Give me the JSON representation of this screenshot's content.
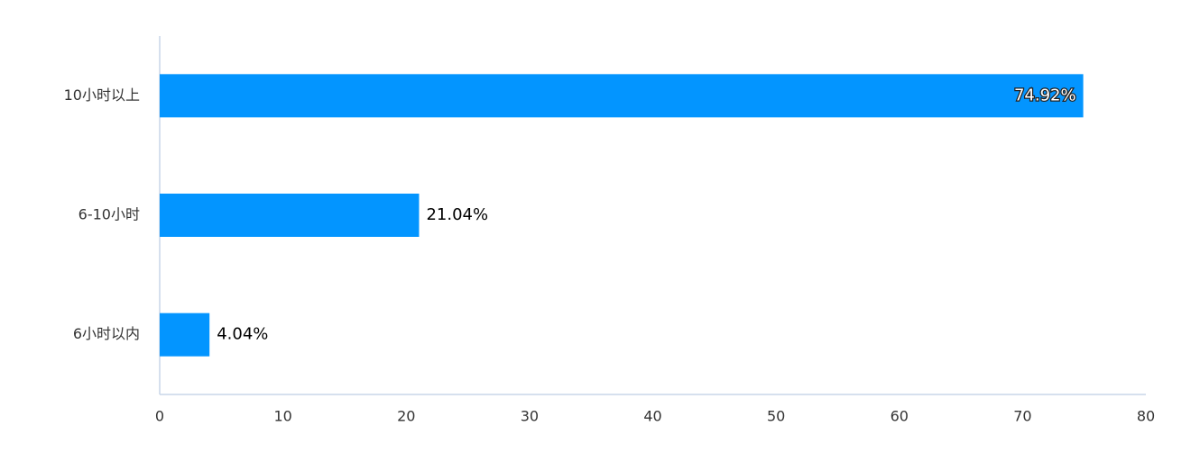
{
  "chart_data": {
    "type": "bar",
    "orientation": "horizontal",
    "categories": [
      "10小时以上",
      "6-10小时",
      "6小时以内"
    ],
    "values": [
      74.92,
      21.04,
      4.04
    ],
    "value_labels": [
      "74.92%",
      "21.04%",
      "4.04%"
    ],
    "color": "#0395ff",
    "xlim": [
      0,
      80
    ],
    "xticks": [
      0,
      10,
      20,
      30,
      40,
      50,
      60,
      70,
      80
    ],
    "grid": false
  }
}
